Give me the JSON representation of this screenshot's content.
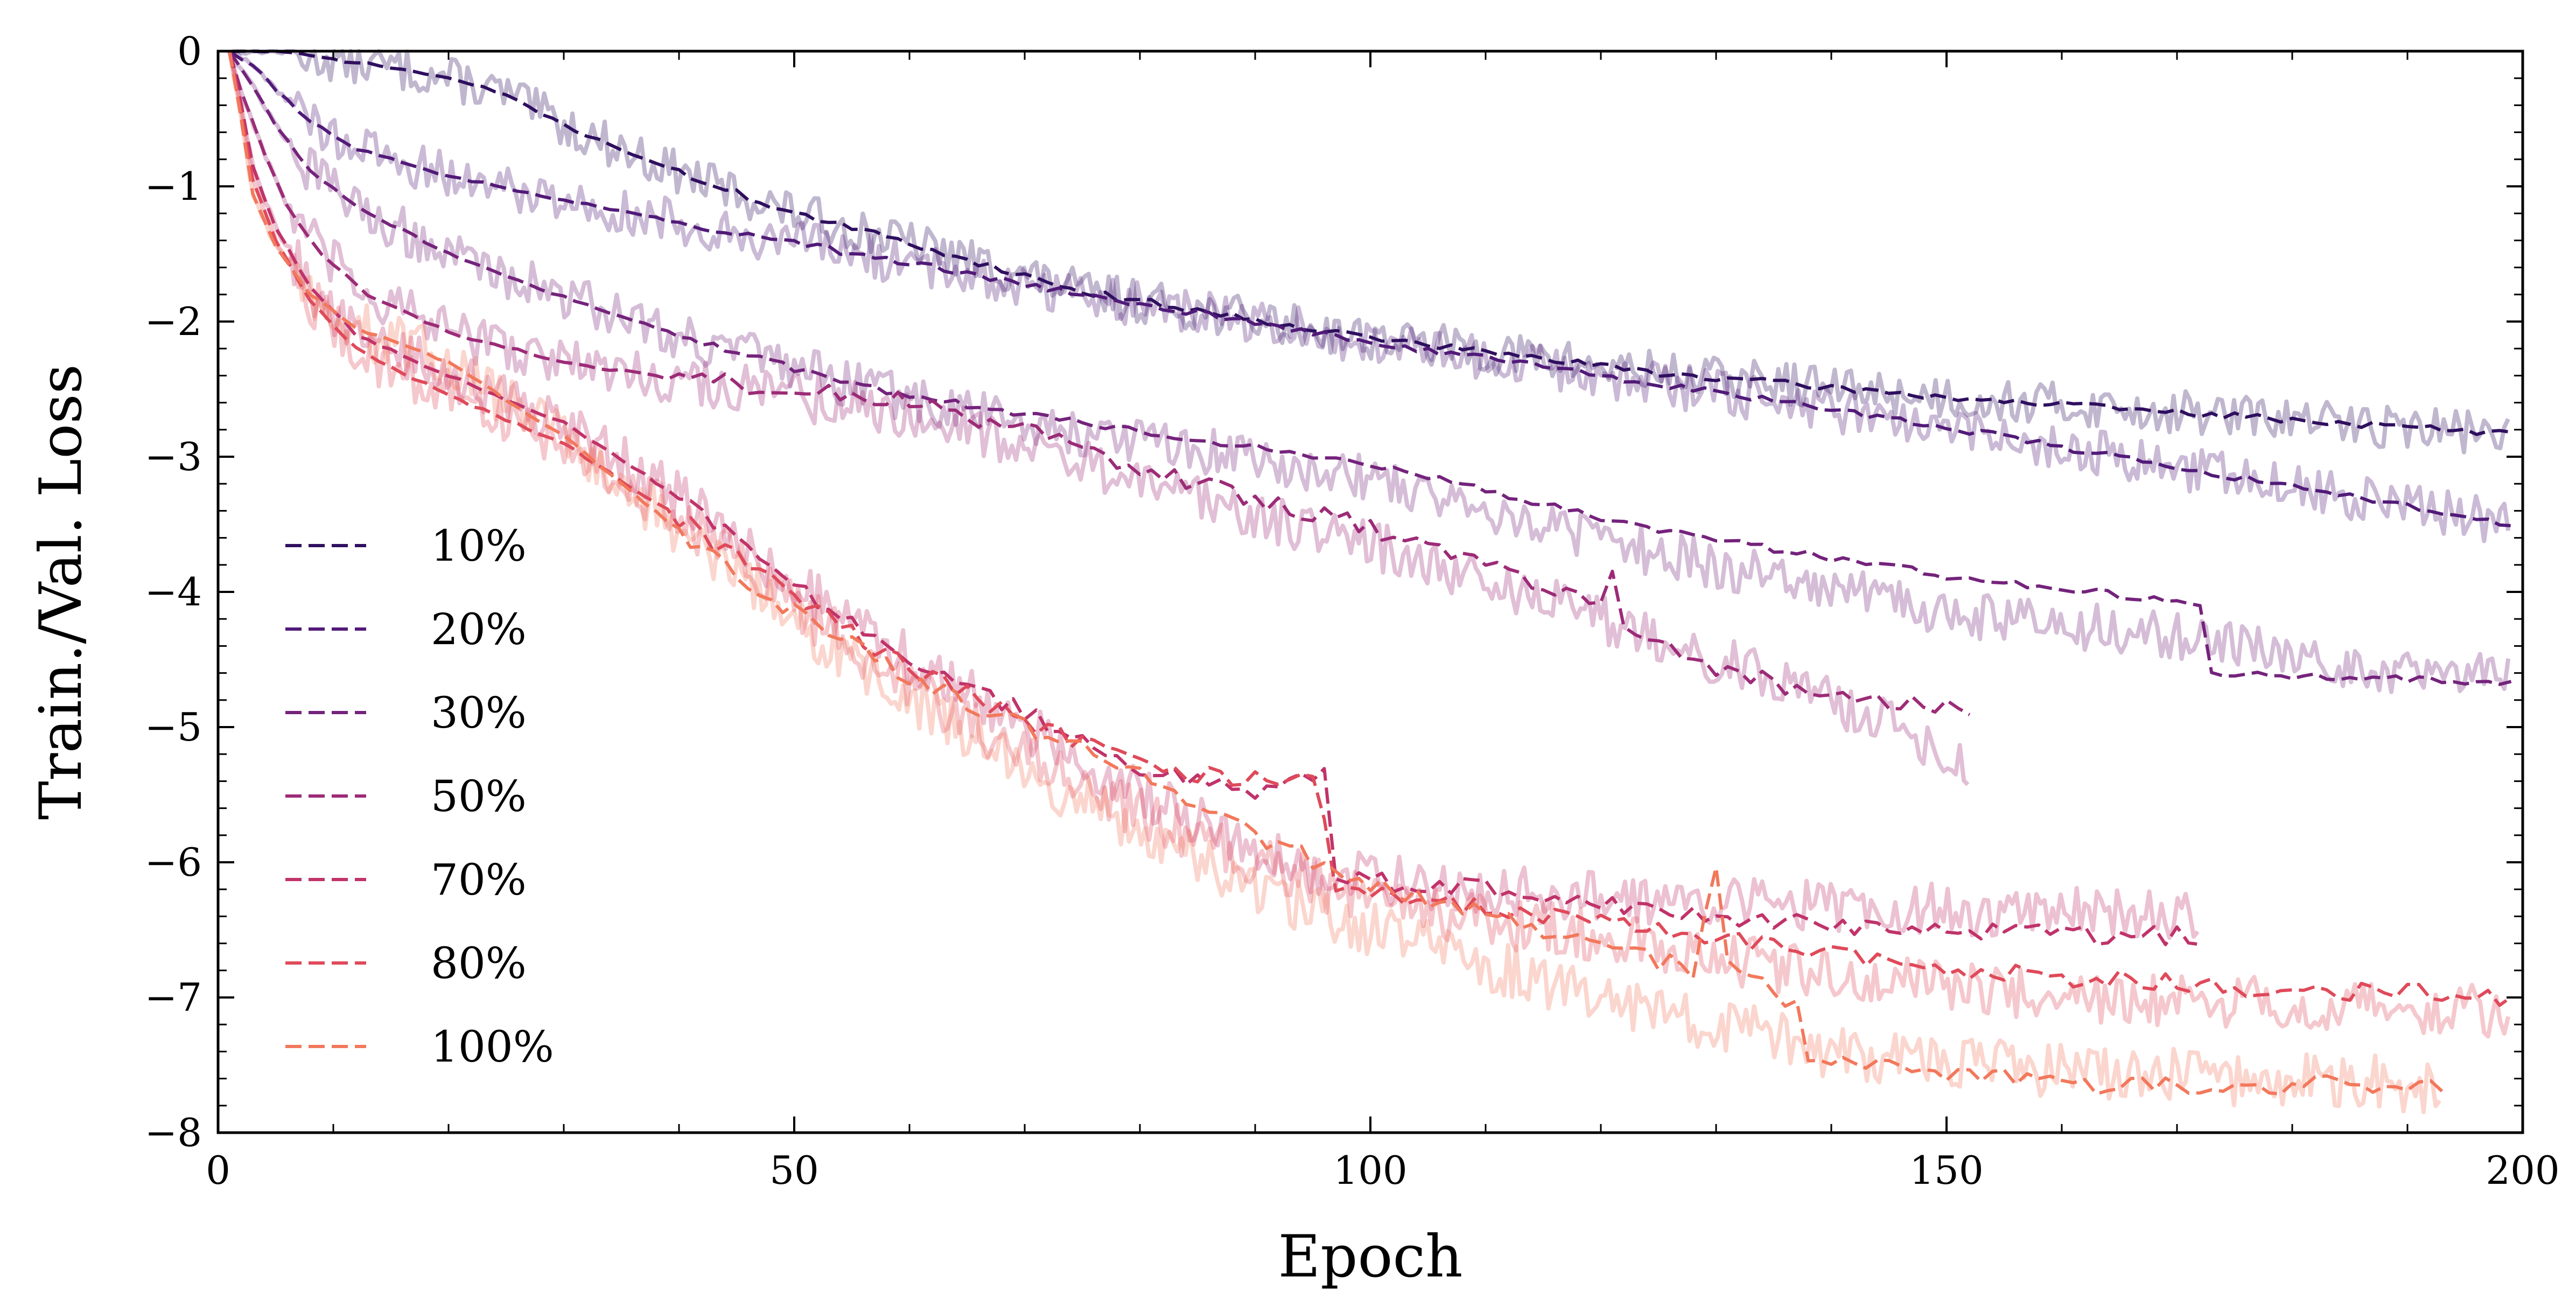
{
  "chart_data": {
    "type": "line",
    "title": "",
    "xlabel": "Epoch",
    "ylabel": "Train./Val. Loss",
    "xlim": [
      0,
      200
    ],
    "ylim": [
      -8,
      0
    ],
    "xticks": [
      "0",
      "50",
      "100",
      "150",
      "200"
    ],
    "yticks": [
      "0",
      "−1",
      "−2",
      "−3",
      "−4",
      "−5",
      "−6",
      "−7",
      "−8"
    ],
    "grid": false,
    "legend_position": "lower-left",
    "series": [
      {
        "name": "10%",
        "color": "#2f0f5f",
        "last_epoch": 199,
        "val_points": [
          [
            1,
            0
          ],
          [
            5,
            0
          ],
          [
            10,
            -0.06
          ],
          [
            15,
            -0.12
          ],
          [
            20,
            -0.2
          ],
          [
            25,
            -0.32
          ],
          [
            30,
            -0.55
          ],
          [
            40,
            -0.9
          ],
          [
            50,
            -1.2
          ],
          [
            60,
            -1.42
          ],
          [
            75,
            -1.78
          ],
          [
            100,
            -2.12
          ],
          [
            125,
            -2.38
          ],
          [
            150,
            -2.56
          ],
          [
            175,
            -2.7
          ],
          [
            199,
            -2.83
          ]
        ],
        "train_points": [
          [
            1,
            0
          ],
          [
            5,
            0
          ],
          [
            10,
            -0.06
          ],
          [
            15,
            -0.12
          ],
          [
            20,
            -0.2
          ],
          [
            25,
            -0.32
          ],
          [
            30,
            -0.55
          ],
          [
            40,
            -0.9
          ],
          [
            50,
            -1.2
          ],
          [
            60,
            -1.42
          ],
          [
            75,
            -1.78
          ],
          [
            100,
            -2.12
          ],
          [
            125,
            -2.38
          ],
          [
            150,
            -2.56
          ],
          [
            175,
            -2.7
          ],
          [
            199,
            -2.83
          ]
        ]
      },
      {
        "name": "20%",
        "color": "#511a78",
        "last_epoch": 199,
        "val_points": [
          [
            1,
            0
          ],
          [
            3,
            -0.1
          ],
          [
            5,
            -0.28
          ],
          [
            8,
            -0.52
          ],
          [
            12,
            -0.72
          ],
          [
            20,
            -0.92
          ],
          [
            30,
            -1.1
          ],
          [
            40,
            -1.27
          ],
          [
            50,
            -1.42
          ],
          [
            60,
            -1.57
          ],
          [
            75,
            -1.8
          ],
          [
            100,
            -2.15
          ],
          [
            125,
            -2.46
          ],
          [
            150,
            -2.78
          ],
          [
            175,
            -3.15
          ],
          [
            199,
            -3.5
          ]
        ],
        "train_points": [
          [
            1,
            0
          ],
          [
            3,
            -0.1
          ],
          [
            5,
            -0.28
          ],
          [
            8,
            -0.52
          ],
          [
            12,
            -0.72
          ],
          [
            20,
            -0.92
          ],
          [
            30,
            -1.1
          ],
          [
            40,
            -1.27
          ],
          [
            50,
            -1.42
          ],
          [
            60,
            -1.57
          ],
          [
            75,
            -1.8
          ],
          [
            100,
            -2.15
          ],
          [
            125,
            -2.46
          ],
          [
            150,
            -2.78
          ],
          [
            175,
            -3.15
          ],
          [
            199,
            -3.5
          ]
        ]
      },
      {
        "name": "30%",
        "color": "#74237c",
        "last_epoch": 199,
        "val_points": [
          [
            1,
            0
          ],
          [
            3,
            -0.25
          ],
          [
            5,
            -0.55
          ],
          [
            8,
            -0.88
          ],
          [
            12,
            -1.15
          ],
          [
            20,
            -1.5
          ],
          [
            30,
            -1.82
          ],
          [
            40,
            -2.1
          ],
          [
            50,
            -2.35
          ],
          [
            60,
            -2.55
          ],
          [
            75,
            -2.75
          ],
          [
            100,
            -3.05
          ],
          [
            125,
            -3.55
          ],
          [
            150,
            -3.88
          ],
          [
            160,
            -3.98
          ],
          [
            172,
            -4.08
          ],
          [
            173,
            -4.6
          ],
          [
            185,
            -4.63
          ],
          [
            199,
            -4.68
          ]
        ],
        "train_points": [
          [
            1,
            0
          ],
          [
            3,
            -0.25
          ],
          [
            5,
            -0.55
          ],
          [
            8,
            -0.88
          ],
          [
            12,
            -1.15
          ],
          [
            20,
            -1.5
          ],
          [
            30,
            -1.8
          ],
          [
            40,
            -2.1
          ],
          [
            50,
            -2.35
          ],
          [
            60,
            -2.58
          ],
          [
            75,
            -2.82
          ],
          [
            100,
            -3.15
          ],
          [
            125,
            -3.72
          ],
          [
            150,
            -4.15
          ],
          [
            172,
            -4.35
          ],
          [
            185,
            -4.55
          ],
          [
            199,
            -4.62
          ]
        ]
      },
      {
        "name": "50%",
        "color": "#9c2b77",
        "last_epoch": 152,
        "val_points": [
          [
            1,
            0
          ],
          [
            2,
            -0.3
          ],
          [
            4,
            -0.75
          ],
          [
            6,
            -1.15
          ],
          [
            9,
            -1.5
          ],
          [
            13,
            -1.8
          ],
          [
            20,
            -2.08
          ],
          [
            30,
            -2.3
          ],
          [
            40,
            -2.43
          ],
          [
            50,
            -2.5
          ],
          [
            60,
            -2.6
          ],
          [
            70,
            -2.8
          ],
          [
            80,
            -3.1
          ],
          [
            100,
            -3.52
          ],
          [
            110,
            -3.82
          ],
          [
            120,
            -4.1
          ],
          [
            121,
            -3.8
          ],
          [
            122,
            -4.25
          ],
          [
            130,
            -4.55
          ],
          [
            140,
            -4.78
          ],
          [
            152,
            -4.85
          ]
        ],
        "train_points": [
          [
            1,
            0
          ],
          [
            2,
            -0.3
          ],
          [
            4,
            -0.75
          ],
          [
            6,
            -1.15
          ],
          [
            9,
            -1.5
          ],
          [
            13,
            -1.8
          ],
          [
            20,
            -2.08
          ],
          [
            30,
            -2.3
          ],
          [
            40,
            -2.43
          ],
          [
            50,
            -2.55
          ],
          [
            60,
            -2.68
          ],
          [
            70,
            -2.9
          ],
          [
            80,
            -3.2
          ],
          [
            100,
            -3.65
          ],
          [
            120,
            -4.2
          ],
          [
            140,
            -4.8
          ],
          [
            152,
            -5.25
          ]
        ]
      },
      {
        "name": "70%",
        "color": "#c0336a",
        "last_epoch": 172,
        "val_points": [
          [
            1,
            0
          ],
          [
            2,
            -0.4
          ],
          [
            3,
            -0.85
          ],
          [
            5,
            -1.3
          ],
          [
            8,
            -1.75
          ],
          [
            12,
            -2.1
          ],
          [
            20,
            -2.4
          ],
          [
            30,
            -2.75
          ],
          [
            40,
            -3.3
          ],
          [
            50,
            -3.95
          ],
          [
            60,
            -4.5
          ],
          [
            70,
            -4.9
          ],
          [
            80,
            -5.3
          ],
          [
            90,
            -5.5
          ],
          [
            96,
            -5.3
          ],
          [
            97,
            -6.12
          ],
          [
            110,
            -6.2
          ],
          [
            130,
            -6.42
          ],
          [
            150,
            -6.52
          ],
          [
            172,
            -6.55
          ]
        ],
        "train_points": [
          [
            1,
            0
          ],
          [
            2,
            -0.4
          ],
          [
            3,
            -0.85
          ],
          [
            5,
            -1.3
          ],
          [
            8,
            -1.75
          ],
          [
            12,
            -2.1
          ],
          [
            20,
            -2.4
          ],
          [
            30,
            -2.75
          ],
          [
            40,
            -3.3
          ],
          [
            50,
            -3.95
          ],
          [
            60,
            -4.5
          ],
          [
            70,
            -5
          ],
          [
            80,
            -5.5
          ],
          [
            90,
            -5.9
          ],
          [
            97,
            -6.1
          ],
          [
            110,
            -6.2
          ],
          [
            130,
            -6.3
          ],
          [
            150,
            -6.35
          ],
          [
            172,
            -6.4
          ]
        ]
      },
      {
        "name": "80%",
        "color": "#df4a5a",
        "last_epoch": 199,
        "val_points": [
          [
            1,
            0
          ],
          [
            2,
            -0.45
          ],
          [
            3,
            -0.95
          ],
          [
            5,
            -1.4
          ],
          [
            8,
            -1.85
          ],
          [
            12,
            -2.2
          ],
          [
            20,
            -2.55
          ],
          [
            30,
            -2.9
          ],
          [
            40,
            -3.45
          ],
          [
            50,
            -4.05
          ],
          [
            60,
            -4.55
          ],
          [
            70,
            -4.95
          ],
          [
            80,
            -5.3
          ],
          [
            90,
            -5.4
          ],
          [
            95,
            -5.3
          ],
          [
            97,
            -6.2
          ],
          [
            110,
            -6.35
          ],
          [
            130,
            -6.55
          ],
          [
            150,
            -6.8
          ],
          [
            175,
            -6.92
          ],
          [
            199,
            -7.0
          ]
        ],
        "train_points": [
          [
            1,
            0
          ],
          [
            2,
            -0.45
          ],
          [
            3,
            -0.95
          ],
          [
            5,
            -1.4
          ],
          [
            8,
            -1.85
          ],
          [
            12,
            -2.2
          ],
          [
            20,
            -2.55
          ],
          [
            30,
            -2.9
          ],
          [
            40,
            -3.45
          ],
          [
            50,
            -4.1
          ],
          [
            60,
            -4.7
          ],
          [
            70,
            -5.2
          ],
          [
            80,
            -5.65
          ],
          [
            90,
            -6.0
          ],
          [
            100,
            -6.3
          ],
          [
            120,
            -6.55
          ],
          [
            140,
            -6.85
          ],
          [
            160,
            -7.0
          ],
          [
            180,
            -7.05
          ],
          [
            199,
            -7.1
          ]
        ]
      },
      {
        "name": "100%",
        "color": "#f2785c",
        "last_epoch": 193,
        "val_points": [
          [
            1,
            0
          ],
          [
            2,
            -0.5
          ],
          [
            3,
            -1.05
          ],
          [
            5,
            -1.45
          ],
          [
            8,
            -1.8
          ],
          [
            12,
            -2.05
          ],
          [
            20,
            -2.3
          ],
          [
            30,
            -2.85
          ],
          [
            40,
            -3.55
          ],
          [
            50,
            -4.15
          ],
          [
            60,
            -4.65
          ],
          [
            70,
            -5.0
          ],
          [
            80,
            -5.35
          ],
          [
            90,
            -5.8
          ],
          [
            100,
            -6.15
          ],
          [
            110,
            -6.4
          ],
          [
            120,
            -6.6
          ],
          [
            128,
            -6.8
          ],
          [
            130,
            -6.1
          ],
          [
            131,
            -6.75
          ],
          [
            137,
            -7.05
          ],
          [
            138,
            -7.48
          ],
          [
            150,
            -7.55
          ],
          [
            162,
            -7.6
          ],
          [
            163,
            -7.65
          ],
          [
            193,
            -7.65
          ]
        ],
        "train_points": [
          [
            1,
            0
          ],
          [
            2,
            -0.5
          ],
          [
            3,
            -1.05
          ],
          [
            5,
            -1.45
          ],
          [
            8,
            -1.8
          ],
          [
            12,
            -2.05
          ],
          [
            20,
            -2.3
          ],
          [
            30,
            -2.85
          ],
          [
            40,
            -3.55
          ],
          [
            50,
            -4.2
          ],
          [
            60,
            -4.8
          ],
          [
            70,
            -5.3
          ],
          [
            80,
            -5.8
          ],
          [
            90,
            -6.2
          ],
          [
            100,
            -6.5
          ],
          [
            120,
            -7.0
          ],
          [
            140,
            -7.4
          ],
          [
            160,
            -7.55
          ],
          [
            193,
            -7.65
          ]
        ]
      }
    ]
  }
}
